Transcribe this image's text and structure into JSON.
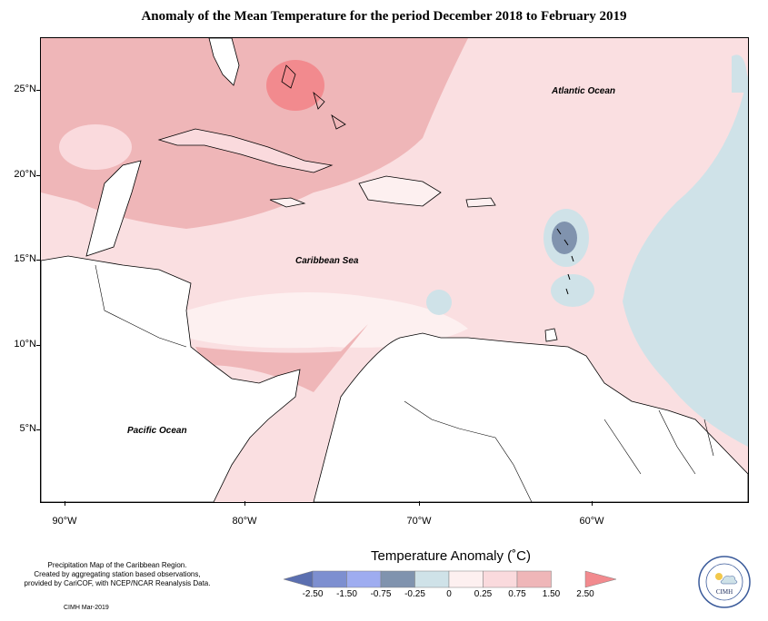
{
  "title": "Anomaly of the Mean Temperature for the period December 2018 to February 2019",
  "map": {
    "latitude_labels": [
      "25°N",
      "20°N",
      "15°N",
      "10°N",
      "5°N"
    ],
    "longitude_labels": [
      "90°W",
      "80°W",
      "70°W",
      "60°W"
    ],
    "ocean_labels": {
      "atlantic": "Atlantic Ocean",
      "caribbean": "Caribbean Sea",
      "pacific": "Pacific Ocean"
    }
  },
  "legend": {
    "title": "Temperature Anomaly (˚C)",
    "ticks": [
      "-2.50",
      "-1.50",
      "-0.75",
      "-0.25",
      "0",
      "0.25",
      "0.75",
      "1.50",
      "2.50"
    ],
    "colors": [
      "#5b6fb0",
      "#7d8fd0",
      "#9eacf0",
      "#8093ae",
      "#cfe2e8",
      "#fdf0f0",
      "#fadadd",
      "#efb6b8",
      "#f28a8e"
    ]
  },
  "footnote": {
    "lines": [
      "Precipitation Map of the Caribbean Region.",
      "Created by aggregating station based observations,",
      "provided by CariCOF, with NCEP/NCAR Reanalysis Data."
    ],
    "credit": "CIMH Mar-2019"
  },
  "logo": {
    "name": "CIMH"
  }
}
